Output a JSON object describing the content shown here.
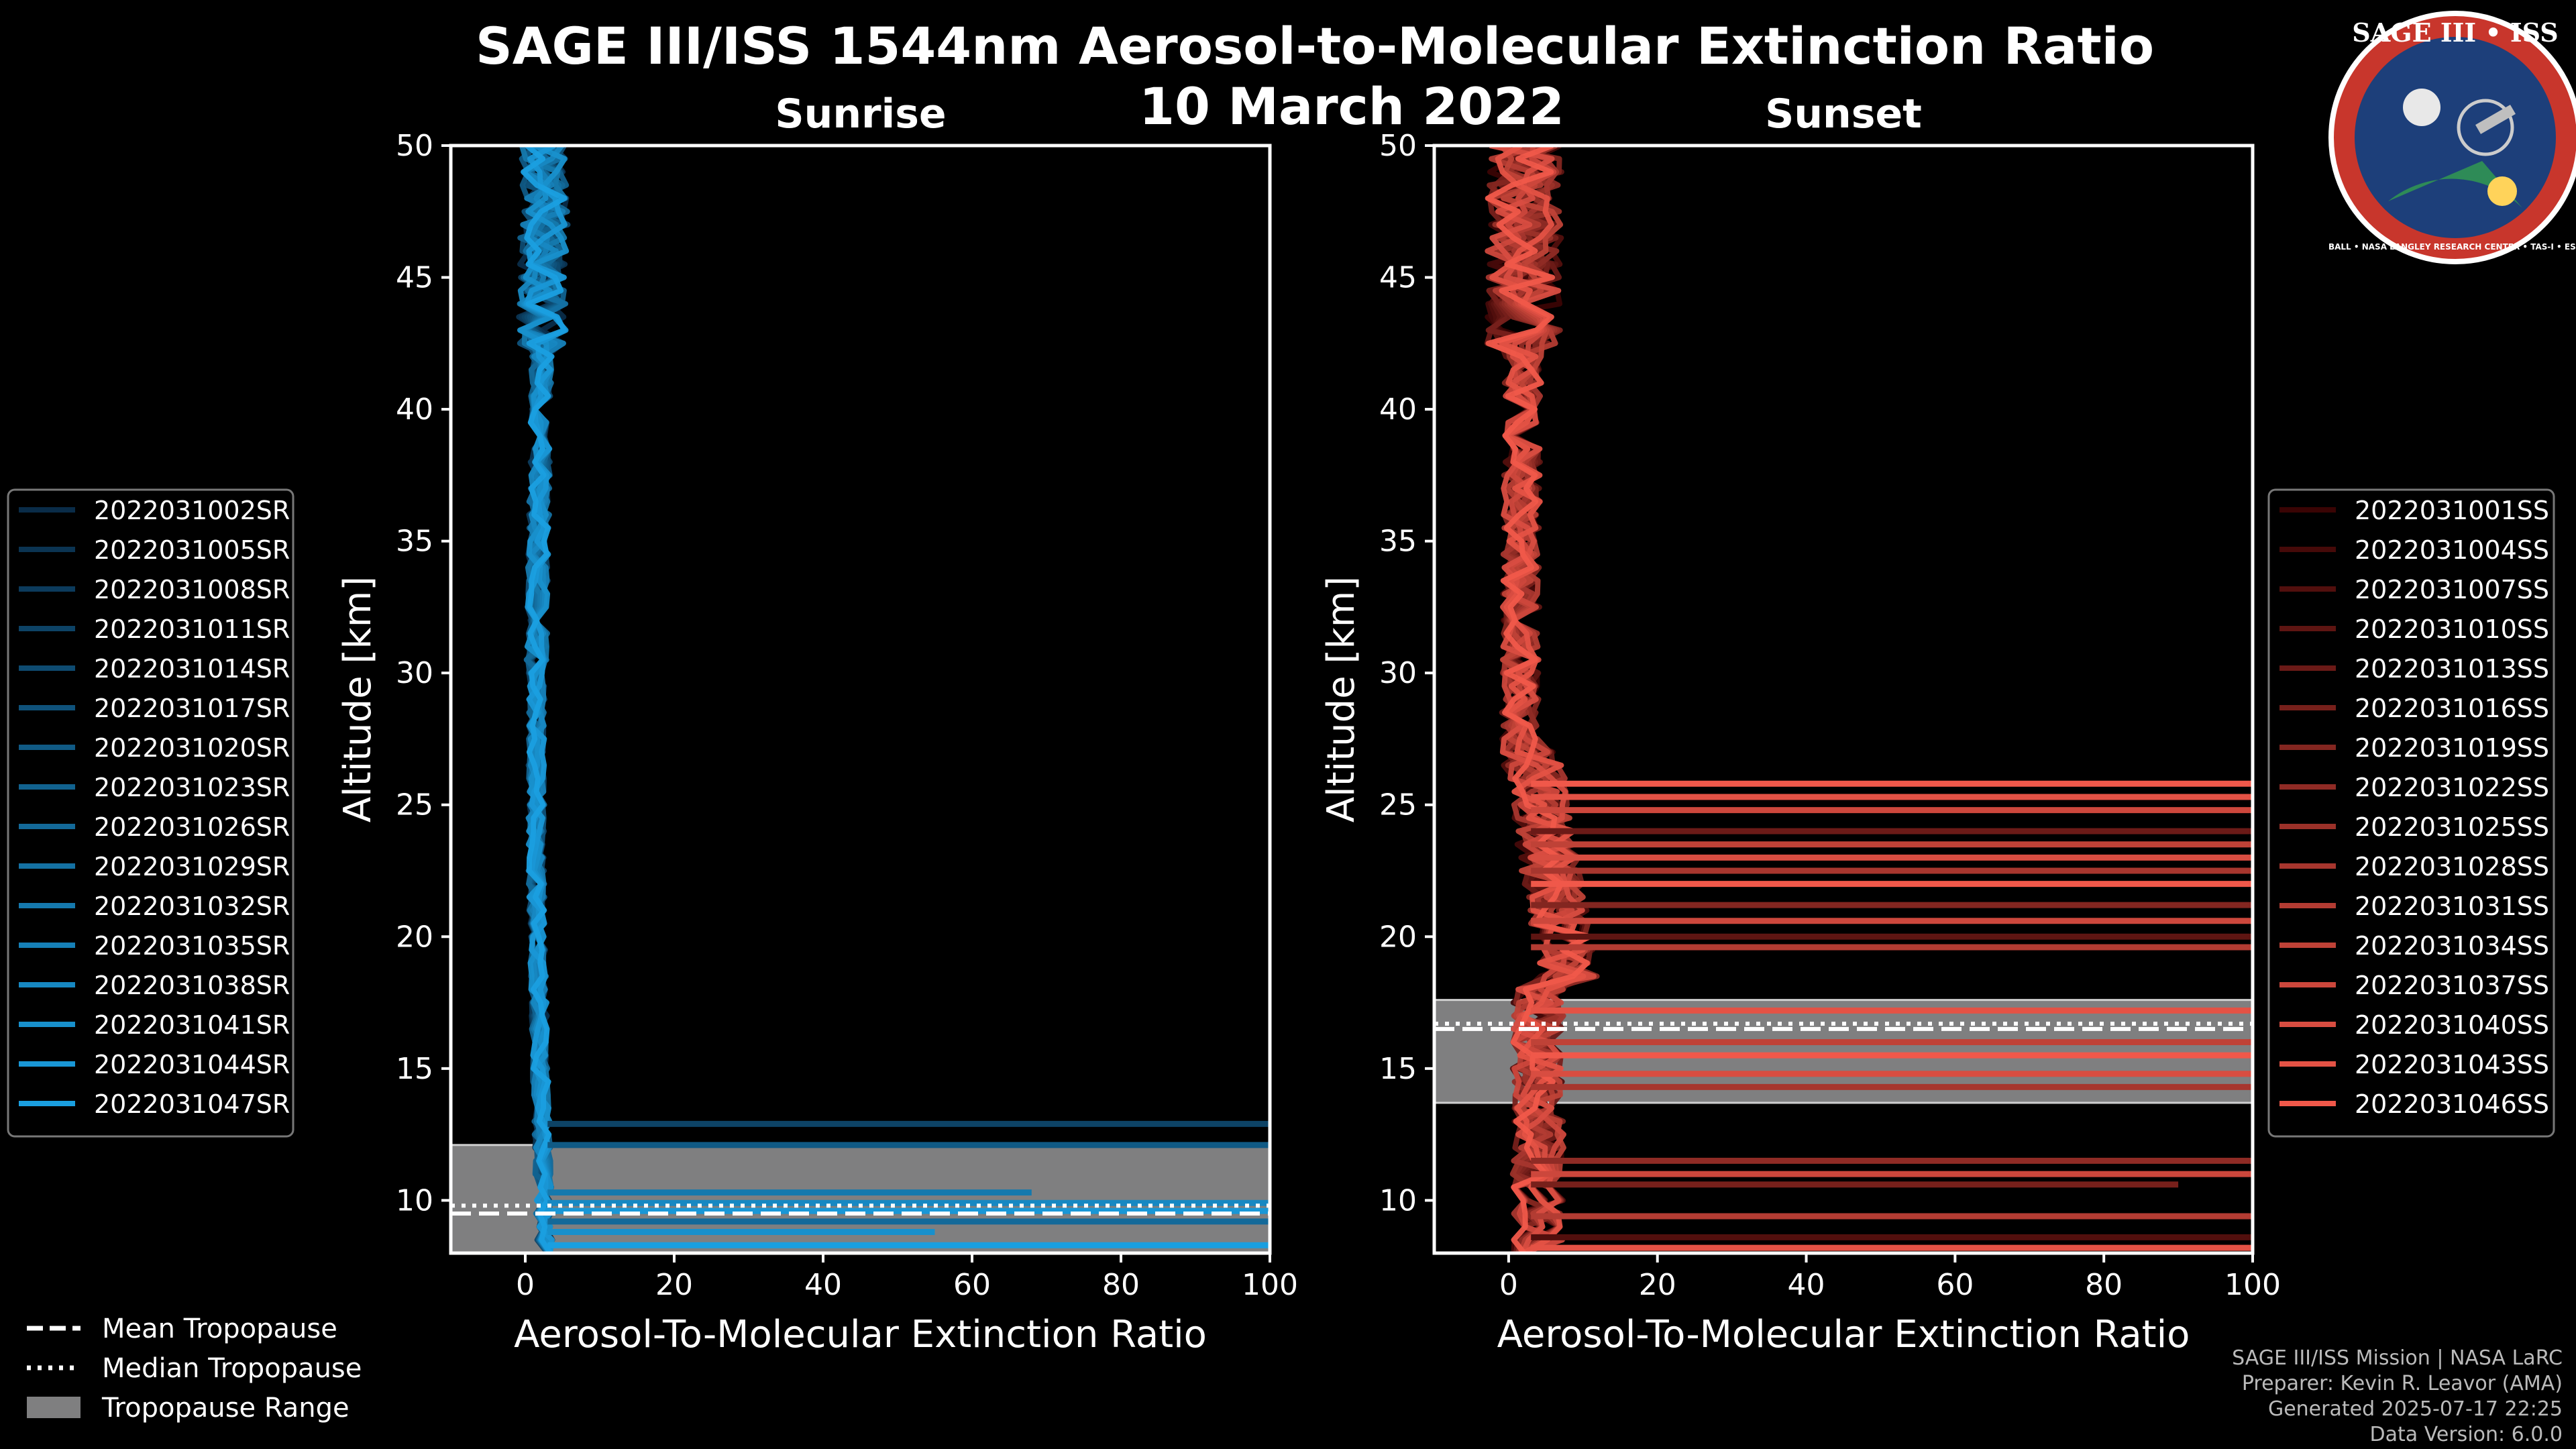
{
  "figure": {
    "title_line1": "SAGE III/ISS 1544nm Aerosol-to-Molecular Extinction Ratio",
    "title_line2": "10 March 2022"
  },
  "logo": {
    "text": "SAGE III • ISS",
    "ring_text": "BALL • NASA LANGLEY RESEARCH CENTER • TAS-I • ESA"
  },
  "footer": {
    "line1": "SAGE III/ISS Mission | NASA LaRC",
    "line2": "Preparer: Kevin R. Leavor (AMA)",
    "line3": "Generated 2025-07-17 22:25",
    "line4": "Data Version: 6.0.0"
  },
  "tropopause_legend": [
    {
      "label": "Mean Tropopause",
      "style": "dashed"
    },
    {
      "label": "Median Tropopause",
      "style": "dotted"
    },
    {
      "label": "Tropopause Range",
      "style": "patch"
    }
  ],
  "chart_data": [
    {
      "type": "line",
      "panel": "sunrise",
      "title": "Sunrise",
      "xlabel": "Aerosol-To-Molecular Extinction Ratio",
      "ylabel": "Altitude [km]",
      "xlim": [
        -10,
        100
      ],
      "ylim": [
        8,
        50
      ],
      "xticks": [
        0,
        20,
        40,
        60,
        80,
        100
      ],
      "yticks": [
        10,
        15,
        20,
        25,
        30,
        35,
        40,
        45,
        50
      ],
      "tropopause": {
        "mean": 9.5,
        "median": 9.8,
        "range": [
          8.0,
          12.1
        ]
      },
      "color_dark": "#0a2c48",
      "color_light": "#1a9fe0",
      "legend_position": "left",
      "series": [
        {
          "name": "2022031002SR"
        },
        {
          "name": "2022031005SR"
        },
        {
          "name": "2022031008SR"
        },
        {
          "name": "2022031011SR"
        },
        {
          "name": "2022031014SR"
        },
        {
          "name": "2022031017SR"
        },
        {
          "name": "2022031020SR"
        },
        {
          "name": "2022031023SR"
        },
        {
          "name": "2022031026SR"
        },
        {
          "name": "2022031029SR"
        },
        {
          "name": "2022031032SR"
        },
        {
          "name": "2022031035SR"
        },
        {
          "name": "2022031038SR"
        },
        {
          "name": "2022031041SR"
        },
        {
          "name": "2022031044SR"
        },
        {
          "name": "2022031047SR"
        }
      ],
      "features": [
        {
          "alt": 12.9,
          "x": 100,
          "series": 3
        },
        {
          "alt": 12.1,
          "x": 100,
          "series": 6
        },
        {
          "alt": 10.3,
          "x": 68,
          "series": 10
        },
        {
          "alt": 9.9,
          "x": 100,
          "series": 12
        },
        {
          "alt": 9.6,
          "x": 100,
          "series": 14
        },
        {
          "alt": 9.2,
          "x": 100,
          "series": 8
        },
        {
          "alt": 8.8,
          "x": 55,
          "series": 13
        },
        {
          "alt": 8.3,
          "x": 100,
          "series": 15
        }
      ]
    },
    {
      "type": "line",
      "panel": "sunset",
      "title": "Sunset",
      "xlabel": "Aerosol-To-Molecular Extinction Ratio",
      "ylabel": "Altitude [km]",
      "xlim": [
        -10,
        100
      ],
      "ylim": [
        8,
        50
      ],
      "xticks": [
        0,
        20,
        40,
        60,
        80,
        100
      ],
      "yticks": [
        10,
        15,
        20,
        25,
        30,
        35,
        40,
        45,
        50
      ],
      "tropopause": {
        "mean": 16.5,
        "median": 16.7,
        "range": [
          13.7,
          17.6
        ]
      },
      "color_dark": "#3a0404",
      "color_light": "#f0584a",
      "legend_position": "right",
      "series": [
        {
          "name": "2022031001SS"
        },
        {
          "name": "2022031004SS"
        },
        {
          "name": "2022031007SS"
        },
        {
          "name": "2022031010SS"
        },
        {
          "name": "2022031013SS"
        },
        {
          "name": "2022031016SS"
        },
        {
          "name": "2022031019SS"
        },
        {
          "name": "2022031022SS"
        },
        {
          "name": "2022031025SS"
        },
        {
          "name": "2022031028SS"
        },
        {
          "name": "2022031031SS"
        },
        {
          "name": "2022031034SS"
        },
        {
          "name": "2022031037SS"
        },
        {
          "name": "2022031040SS"
        },
        {
          "name": "2022031043SS"
        },
        {
          "name": "2022031046SS"
        }
      ],
      "features": [
        {
          "alt": 25.8,
          "x": 100,
          "series": 15
        },
        {
          "alt": 25.3,
          "x": 100,
          "series": 14
        },
        {
          "alt": 24.8,
          "x": 100,
          "series": 12
        },
        {
          "alt": 24.0,
          "x": 100,
          "series": 4
        },
        {
          "alt": 23.5,
          "x": 100,
          "series": 11
        },
        {
          "alt": 23.0,
          "x": 100,
          "series": 13
        },
        {
          "alt": 22.5,
          "x": 100,
          "series": 9
        },
        {
          "alt": 22.0,
          "x": 100,
          "series": 15
        },
        {
          "alt": 21.2,
          "x": 100,
          "series": 6
        },
        {
          "alt": 20.6,
          "x": 100,
          "series": 12
        },
        {
          "alt": 20.0,
          "x": 100,
          "series": 3
        },
        {
          "alt": 19.6,
          "x": 100,
          "series": 10
        },
        {
          "alt": 17.2,
          "x": 100,
          "series": 14
        },
        {
          "alt": 16.0,
          "x": 100,
          "series": 11
        },
        {
          "alt": 15.5,
          "x": 100,
          "series": 15
        },
        {
          "alt": 14.8,
          "x": 100,
          "series": 13
        },
        {
          "alt": 14.3,
          "x": 100,
          "series": 9
        },
        {
          "alt": 11.5,
          "x": 100,
          "series": 7
        },
        {
          "alt": 11.0,
          "x": 100,
          "series": 12
        },
        {
          "alt": 10.6,
          "x": 90,
          "series": 5
        },
        {
          "alt": 9.4,
          "x": 100,
          "series": 10
        },
        {
          "alt": 8.6,
          "x": 100,
          "series": 2
        },
        {
          "alt": 8.2,
          "x": 100,
          "series": 14
        }
      ]
    }
  ]
}
